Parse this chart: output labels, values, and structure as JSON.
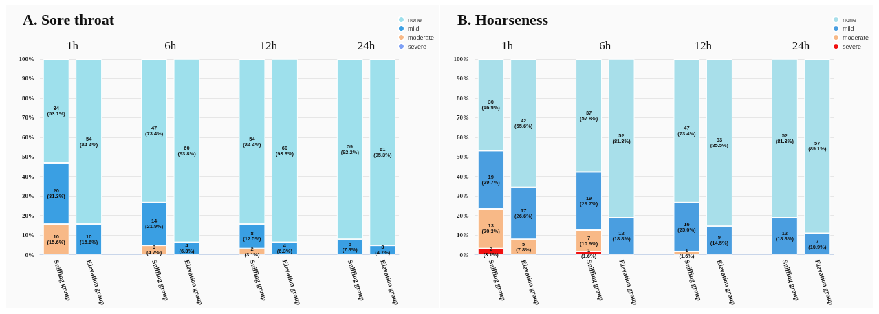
{
  "chart_data": [
    {
      "type": "bar",
      "title": "A. Sore throat",
      "stacked": true,
      "grid": "y",
      "legend": "top right",
      "categories": [
        "Sniffing group",
        "Elevation group",
        null,
        "Sniffing group",
        "Elevation group",
        null,
        "Sniffing group",
        "Elevation group",
        null,
        "Sniffing group",
        "Elevation group"
      ],
      "annotations": [
        "1h",
        "6h",
        "12h",
        "24h"
      ],
      "ylim": [
        0,
        100
      ],
      "yticks": [
        {
          "value": 0,
          "label": "0%"
        },
        {
          "value": 10,
          "label": "10%"
        },
        {
          "value": 20,
          "label": "20%"
        },
        {
          "value": 30,
          "label": "30%"
        },
        {
          "value": 40,
          "label": "40%"
        },
        {
          "value": 50,
          "label": "50%"
        },
        {
          "value": 60,
          "label": "60%"
        },
        {
          "value": 70,
          "label": "70%"
        },
        {
          "value": 80,
          "label": "80%"
        },
        {
          "value": 90,
          "label": "90%"
        },
        {
          "value": 100,
          "label": "100%"
        }
      ],
      "series": [
        {
          "name": "severe",
          "color": "#7d9ff5",
          "values": [
            null,
            null,
            null,
            null,
            null,
            null,
            null,
            null,
            null,
            null,
            null
          ]
        },
        {
          "name": "moderate",
          "color": "#f8b987",
          "values": [
            15.6,
            null,
            null,
            4.7,
            null,
            null,
            3.1,
            null,
            null,
            null,
            null
          ],
          "value_labels": [
            "10\n(15.6%)",
            null,
            null,
            "3\n(4.7%)",
            null,
            null,
            "2\n(3.1%)",
            null,
            null,
            null,
            null
          ]
        },
        {
          "name": "mild",
          "color": "#3a9fe3",
          "values": [
            31.3,
            15.6,
            null,
            21.9,
            6.3,
            null,
            12.5,
            6.3,
            null,
            7.8,
            4.7
          ],
          "value_labels": [
            "20\n(31.3%)",
            "10\n(15.6%)",
            null,
            "14\n(21.9%)",
            "4\n(6.3%)",
            null,
            "8\n(12.5%)",
            "4\n(6.3%)",
            null,
            "5\n(7.8%)",
            "3\n(4.7%)"
          ]
        },
        {
          "name": "none",
          "color": "#9ee0ec",
          "values": [
            53.1,
            84.4,
            null,
            73.4,
            93.8,
            null,
            84.4,
            93.8,
            null,
            92.2,
            95.3
          ],
          "value_labels": [
            "34\n(53.1%)",
            "54\n(84.4%)",
            null,
            "47\n(73.4%)",
            "60\n(93.8%)",
            null,
            "54\n(84.4%)",
            "60\n(93.8%)",
            null,
            "59\n(92.2%)",
            "61\n(95.3%)"
          ]
        }
      ]
    },
    {
      "type": "bar",
      "title": "B. Hoarseness",
      "stacked": true,
      "grid": "y",
      "legend": "top right",
      "categories": [
        "Sniffing group",
        "Elevation group",
        null,
        "Sniffing group",
        "Elevation group",
        null,
        "Sniffing group",
        "Elevation group",
        null,
        "Sniffing group",
        "Elevation group"
      ],
      "annotations": [
        "1h",
        "6h",
        "12h",
        "24h"
      ],
      "ylim": [
        0,
        100
      ],
      "yticks": [
        {
          "value": 0,
          "label": "0%"
        },
        {
          "value": 10,
          "label": "10%"
        },
        {
          "value": 20,
          "label": "20%"
        },
        {
          "value": 30,
          "label": "30%"
        },
        {
          "value": 40,
          "label": "40%"
        },
        {
          "value": 50,
          "label": "50%"
        },
        {
          "value": 60,
          "label": "60%"
        },
        {
          "value": 70,
          "label": "70%"
        },
        {
          "value": 80,
          "label": "80%"
        },
        {
          "value": 90,
          "label": "90%"
        },
        {
          "value": 100,
          "label": "100%"
        }
      ],
      "series": [
        {
          "name": "severe",
          "color": "#f01010",
          "values": [
            3.1,
            null,
            null,
            1.6,
            null,
            null,
            null,
            null,
            null,
            null,
            null
          ],
          "value_labels": [
            "2\n(3.1%)",
            null,
            null,
            "1\n(1.6%)",
            null,
            null,
            null,
            null,
            null,
            null,
            null
          ]
        },
        {
          "name": "moderate",
          "color": "#f8b987",
          "values": [
            20.3,
            7.8,
            null,
            10.9,
            null,
            null,
            1.6,
            null,
            null,
            null,
            null
          ],
          "value_labels": [
            "13\n(20.3%)",
            "5\n(7.8%)",
            null,
            "7\n(10.9%)",
            null,
            null,
            "1\n(1.6%)",
            null,
            null,
            null,
            null
          ]
        },
        {
          "name": "mild",
          "color": "#4a9ee0",
          "values": [
            29.7,
            26.6,
            null,
            29.7,
            18.8,
            null,
            25.0,
            14.5,
            null,
            18.8,
            10.9
          ],
          "value_labels": [
            "19\n(29.7%)",
            "17\n(26.6%)",
            null,
            "19\n(29.7%)",
            "12\n(18.8%)",
            null,
            "16\n(25.0%)",
            "9\n(14.5%)",
            null,
            "12\n(18.8%)",
            "7\n(10.9%)"
          ]
        },
        {
          "name": "none",
          "color": "#a8dfea",
          "values": [
            46.9,
            65.6,
            null,
            57.8,
            81.3,
            null,
            73.4,
            85.5,
            null,
            81.3,
            89.1
          ],
          "value_labels": [
            "30\n(46.9%)",
            "42\n(65.6%)",
            null,
            "37\n(57.8%)",
            "52\n(81.3%)",
            null,
            "47\n(73.4%)",
            "53\n(85.5%)",
            null,
            "52\n(81.3%)",
            "57\n(89.1%)"
          ]
        }
      ]
    }
  ]
}
